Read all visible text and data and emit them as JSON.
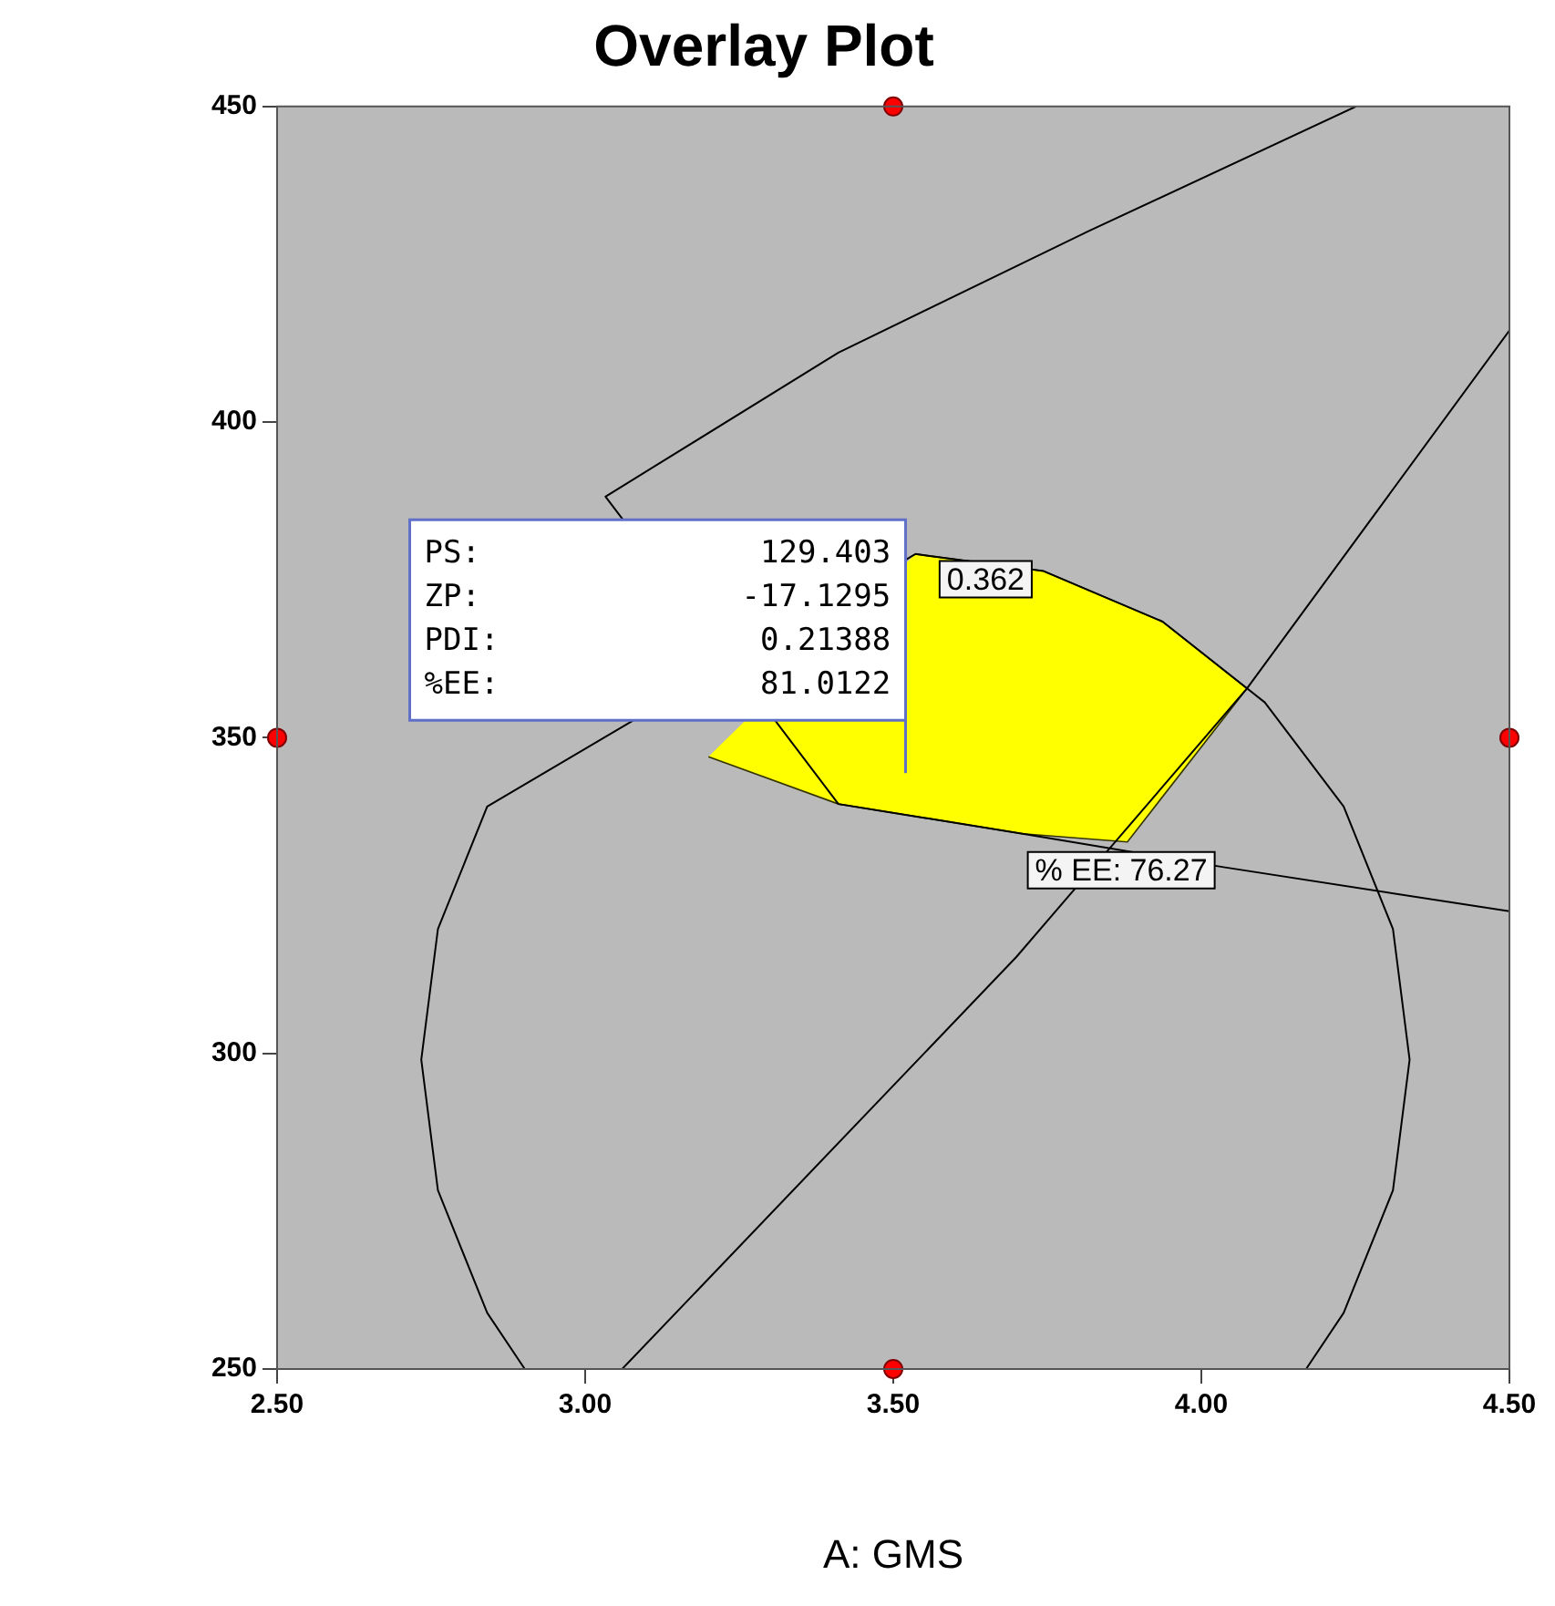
{
  "chart_data": {
    "type": "scatter",
    "title": "Overlay Plot",
    "xlabel": "A: GMS",
    "xlim": [
      2.5,
      4.5
    ],
    "xticks": [
      {
        "value": 2.5,
        "label": "2.50"
      },
      {
        "value": 3,
        "label": "3.00"
      },
      {
        "value": 3.5,
        "label": "3.50"
      },
      {
        "value": 4,
        "label": "4.00"
      },
      {
        "value": 4.5,
        "label": "4.50"
      }
    ],
    "ylim": [
      250,
      450
    ],
    "yticks": [
      250,
      300,
      350,
      400,
      450
    ],
    "grid": false,
    "legend": false,
    "series": [
      {
        "type": "area",
        "color": "#ffff00",
        "x": [
          3.536,
          3.744,
          3.937,
          4.074,
          3.88,
          3.71,
          3.411,
          3.2
        ],
        "values": [
          379.1,
          376.4,
          368.4,
          357.8,
          333.5,
          334.8,
          339.5,
          347
        ]
      },
      {
        "type": "line",
        "color": "#000000",
        "x": [
          2.902,
          2.841,
          2.761,
          2.734,
          2.761,
          2.841,
          3.536,
          3.744,
          3.937,
          4.103,
          4.231,
          4.311,
          4.338,
          4.311,
          4.231,
          4.17
        ],
        "values": [
          250,
          258.9,
          278.3,
          299,
          319.7,
          339.1,
          379.1,
          376.4,
          368.4,
          355.6,
          339.1,
          319.7,
          299,
          278.3,
          258.9,
          250
        ]
      },
      {
        "type": "line",
        "color": "#000000",
        "x": [
          3.06,
          3.7,
          4.074,
          4.5
        ],
        "values": [
          250,
          315.3,
          357.8,
          414.5
        ]
      },
      {
        "type": "line",
        "color": "#000000",
        "x": [
          4.251,
          3.816,
          3.411,
          3.033,
          3.411,
          3.71,
          4.036,
          4.5
        ],
        "values": [
          450,
          430.2,
          411,
          388.2,
          339.5,
          334.8,
          329.5,
          322.5
        ]
      },
      {
        "color": "#ff0000",
        "marker": "circle",
        "x": [
          3.5,
          2.5,
          4.5,
          3.5
        ],
        "values": [
          450,
          350,
          350,
          250
        ]
      }
    ],
    "annotations": [
      {
        "text": "0.362",
        "x": 3.65,
        "y": 378.3
      },
      {
        "text": "% EE: 76.27",
        "x": 3.87,
        "y": 332.2
      },
      "PS: 129.403",
      "ZP: -17.1295",
      "PDI: 0.21388",
      "%EE: 81.0122"
    ]
  }
}
